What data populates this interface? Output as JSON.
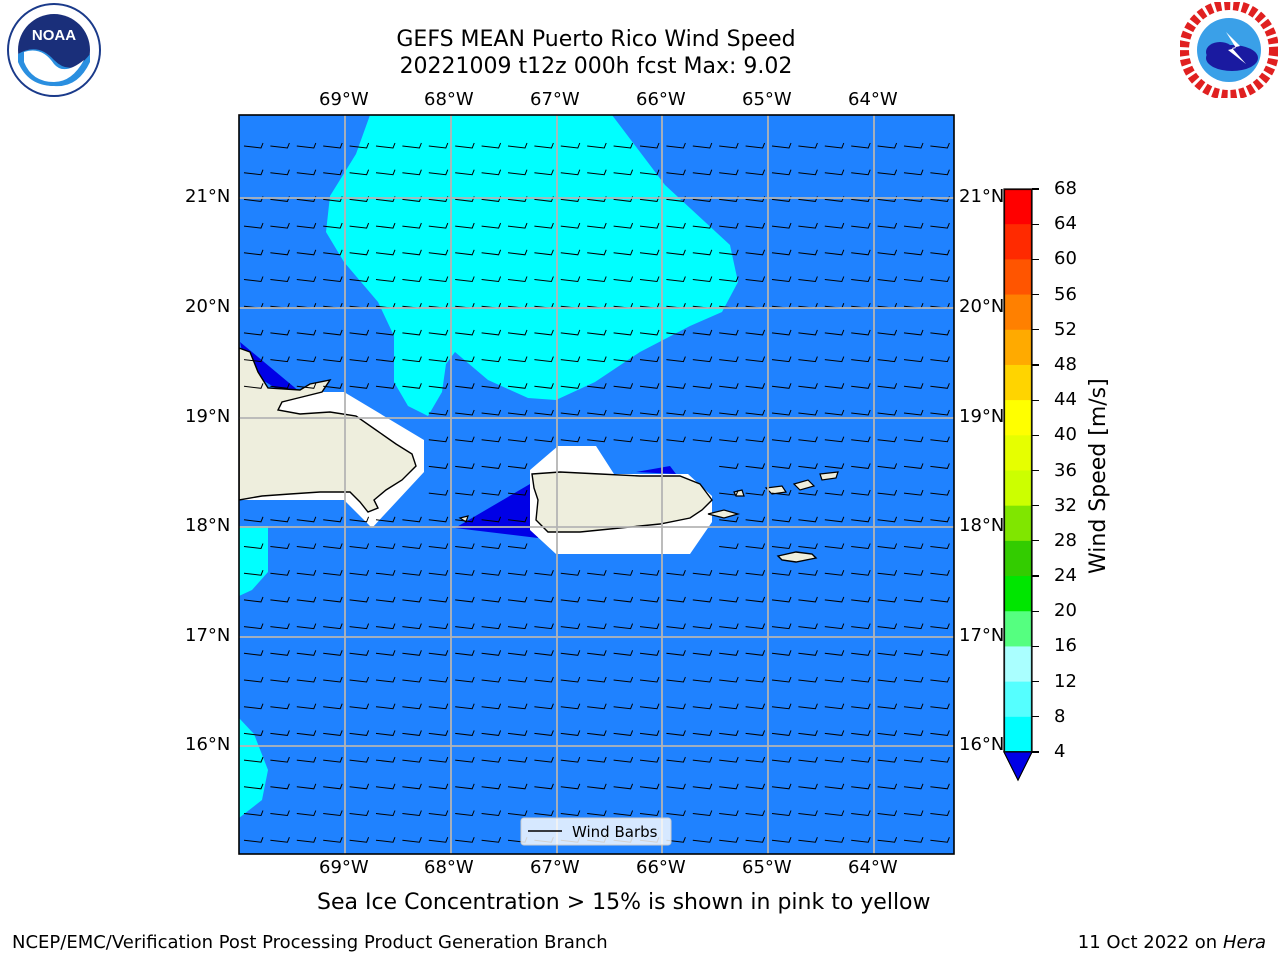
{
  "header": {
    "title_line1": "GEFS MEAN Puerto Rico Wind Speed",
    "title_line2": "20221009 t12z 000h fcst   Max: 9.02"
  },
  "logos": {
    "left": "noaa-logo",
    "left_text": "NOAA",
    "left_ring_text": "NATIONAL OCEANIC AND ATMOSPHERIC ADMINISTRATION · U.S. DEPARTMENT OF COMMERCE",
    "right": "national-weather-service-logo",
    "right_ring_text": "NATIONAL WEATHER SERVICE"
  },
  "map": {
    "lon_ticks": [
      "69°W",
      "68°W",
      "67°W",
      "66°W",
      "65°W",
      "64°W"
    ],
    "lat_ticks": [
      "21°N",
      "20°N",
      "19°N",
      "18°N",
      "17°N",
      "16°N"
    ],
    "legend_label": "Wind Barbs",
    "colors": {
      "speed_4_8": "#1f82ff",
      "speed_8_12": "#00ffff",
      "speed_below_4": "#0000e6",
      "land": "#eeeedd",
      "missing": "#ffffff"
    }
  },
  "colorbar": {
    "title": "Wind Speed [m/s]",
    "levels": [
      "68",
      "64",
      "60",
      "56",
      "52",
      "48",
      "44",
      "40",
      "36",
      "32",
      "28",
      "24",
      "20",
      "16",
      "12",
      "8",
      "4"
    ],
    "colors": [
      "#ff0000",
      "#ff2a00",
      "#ff5500",
      "#ff8000",
      "#ffaa00",
      "#ffd400",
      "#ffff00",
      "#e6ff00",
      "#ccff00",
      "#80e600",
      "#33cc00",
      "#00e600",
      "#55ff80",
      "#aaffff",
      "#55ffff",
      "#00ffff",
      "#1f82ff"
    ],
    "extend_color": "#0000e6"
  },
  "note": "Sea Ice Concentration > 15% is shown in pink to yellow",
  "footer": {
    "left": "NCEP/EMC/Verification Post Processing Product Generation Branch",
    "right_date": "11 Oct 2022 on ",
    "right_host": "Hera"
  }
}
